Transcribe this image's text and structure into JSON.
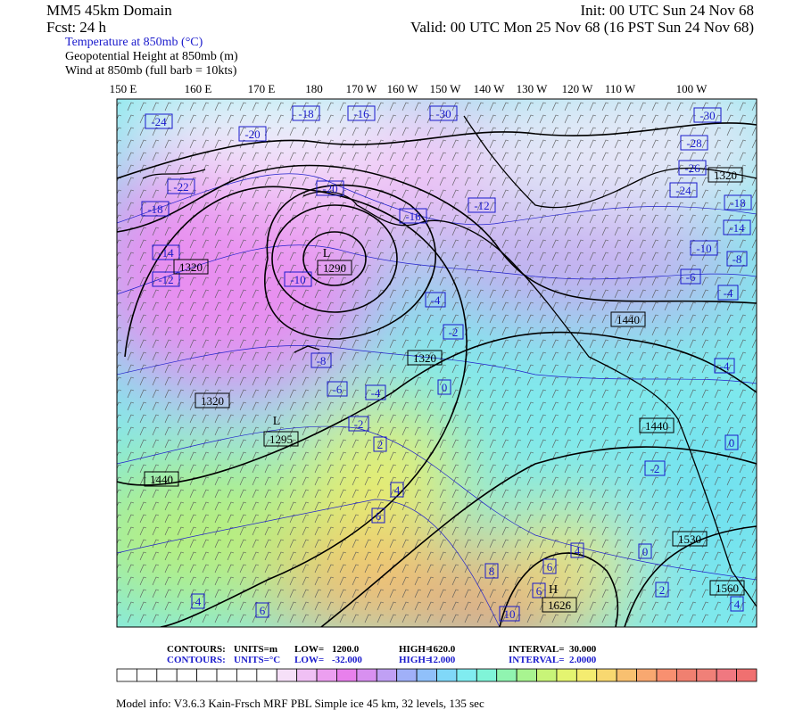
{
  "header": {
    "left": [
      "MM5 45km Domain",
      "Fcst:   24 h"
    ],
    "right": [
      "Init: 00 UTC Sun 24 Nov 68",
      "Valid: 00 UTC Mon 25 Nov 68 (16 PST Sun 24 Nov 68)"
    ],
    "fields": [
      "Temperature at 850mb (°C)",
      "Geopotential Height at 850mb (m)",
      "Wind at 850mb (full barb = 10kts)"
    ]
  },
  "longitudes": [
    "150 E",
    "160 E",
    "170 E",
    "180",
    "170 W",
    "160 W",
    "150 W",
    "140 W",
    "130 W",
    "120 W",
    "110 W",
    "100 W"
  ],
  "temperature_labels": [
    "-24",
    "-20",
    "-18",
    "-16",
    "-30",
    "-30",
    "-28",
    "-26",
    "-24",
    "-22",
    "-18",
    "-20",
    "-16",
    "-12",
    "-18",
    "-14",
    "-10",
    "-8",
    "-14",
    "-12",
    "-10",
    "-6",
    "-4",
    "-4",
    "-2",
    "-8",
    "-6",
    "-4",
    "-4",
    "0",
    "-2",
    "2",
    "0",
    "-2",
    "4",
    "6",
    "4",
    "0",
    "6",
    "8",
    "6",
    "2",
    "4",
    "4",
    "6",
    "10"
  ],
  "height_labels": [
    "1320",
    "1320",
    "1290",
    "1320",
    "1440",
    "1320",
    "1295",
    "1440",
    "1440",
    "1530",
    "1560",
    "1626"
  ],
  "centers": [
    "L",
    "L",
    "H"
  ],
  "contour_info": [
    [
      "CONTOURS:",
      "UNITS=m",
      "LOW=",
      "1200.0",
      "HIGH=",
      "1620.0",
      "INTERVAL=",
      "30.000"
    ],
    [
      "CONTOURS:",
      "UNITS=°C",
      "LOW=",
      "-32.000",
      "HIGH=",
      "12.000",
      "INTERVAL=",
      "2.0000"
    ]
  ],
  "model_info": "Model info: V3.6.3 Kain-Frsch MRF PBL    Simple ice    45 km,  32 levels,  135 sec"
}
